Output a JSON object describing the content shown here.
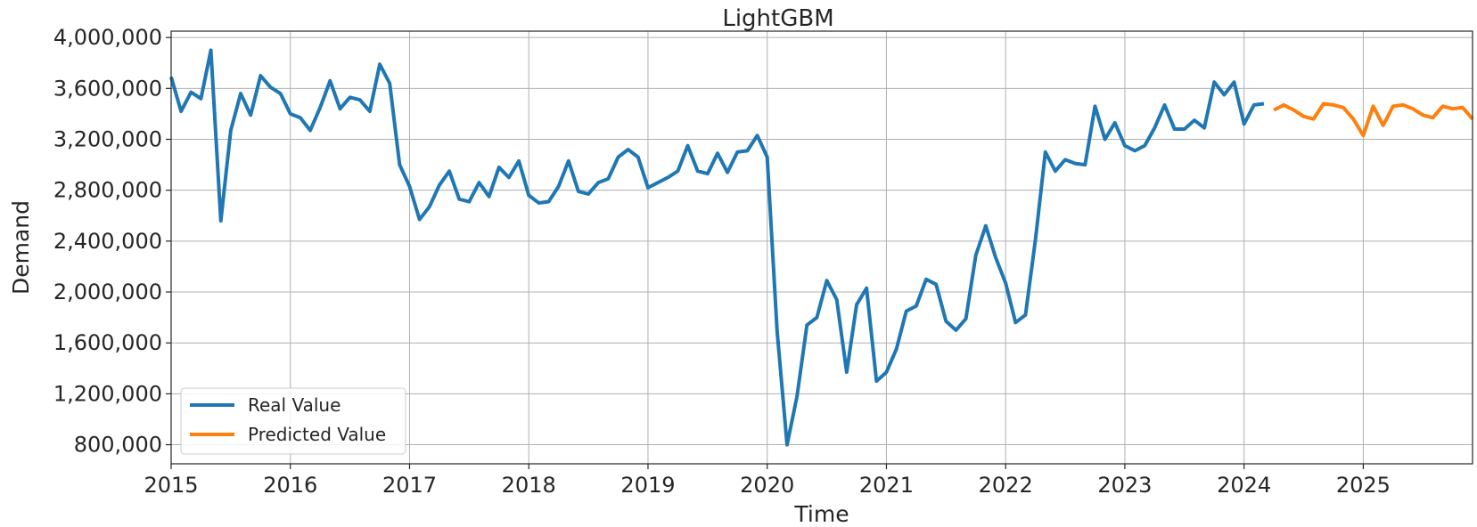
{
  "chart_data": {
    "type": "line",
    "title": "LightGBM",
    "xlabel": "Time",
    "ylabel": "Demand",
    "xlim": [
      "2015-01",
      "2025-12"
    ],
    "ylim": [
      650000,
      4050000
    ],
    "grid": true,
    "legend_position": "bottom-left",
    "x_ticks": [
      "2015",
      "2016",
      "2017",
      "2018",
      "2019",
      "2020",
      "2021",
      "2022",
      "2023",
      "2024",
      "2025"
    ],
    "y_ticks": [
      {
        "value": 800000,
        "label": "800,000"
      },
      {
        "value": 1200000,
        "label": "1,200,000"
      },
      {
        "value": 1600000,
        "label": "1,600,000"
      },
      {
        "value": 2000000,
        "label": "2,000,000"
      },
      {
        "value": 2400000,
        "label": "2,400,000"
      },
      {
        "value": 2800000,
        "label": "2,800,000"
      },
      {
        "value": 3200000,
        "label": "3,200,000"
      },
      {
        "value": 3600000,
        "label": "3,600,000"
      },
      {
        "value": 4000000,
        "label": "4,000,000"
      }
    ],
    "series": [
      {
        "name": "Real Value",
        "color": "#1f77b4",
        "start": "2015-01",
        "values": [
          3690000,
          3420000,
          3570000,
          3520000,
          3900000,
          2560000,
          3270000,
          3560000,
          3390000,
          3700000,
          3610000,
          3560000,
          3400000,
          3370000,
          3270000,
          3450000,
          3660000,
          3440000,
          3530000,
          3510000,
          3420000,
          3790000,
          3640000,
          3000000,
          2830000,
          2570000,
          2670000,
          2840000,
          2950000,
          2730000,
          2710000,
          2860000,
          2750000,
          2980000,
          2900000,
          3030000,
          2760000,
          2700000,
          2710000,
          2830000,
          3030000,
          2790000,
          2770000,
          2860000,
          2890000,
          3060000,
          3120000,
          3060000,
          2820000,
          2860000,
          2900000,
          2950000,
          3150000,
          2950000,
          2930000,
          3090000,
          2940000,
          3100000,
          3110000,
          3230000,
          3060000,
          1690000,
          800000,
          1180000,
          1740000,
          1800000,
          2090000,
          1940000,
          1370000,
          1900000,
          2030000,
          1300000,
          1370000,
          1550000,
          1850000,
          1890000,
          2100000,
          2060000,
          1770000,
          1700000,
          1790000,
          2290000,
          2520000,
          2270000,
          2070000,
          1760000,
          1820000,
          2410000,
          3100000,
          2950000,
          3040000,
          3010000,
          3000000,
          3460000,
          3200000,
          3330000,
          3150000,
          3110000,
          3150000,
          3290000,
          3470000,
          3280000,
          3280000,
          3350000,
          3290000,
          3650000,
          3550000,
          3650000,
          3320000,
          3470000,
          3480000
        ]
      },
      {
        "name": "Predicted Value",
        "color": "#ff7f0e",
        "start": "2024-04",
        "values": [
          3430000,
          3470000,
          3430000,
          3380000,
          3360000,
          3480000,
          3470000,
          3450000,
          3360000,
          3230000,
          3460000,
          3310000,
          3460000,
          3470000,
          3440000,
          3390000,
          3370000,
          3460000,
          3440000,
          3450000,
          3360000
        ]
      }
    ]
  }
}
